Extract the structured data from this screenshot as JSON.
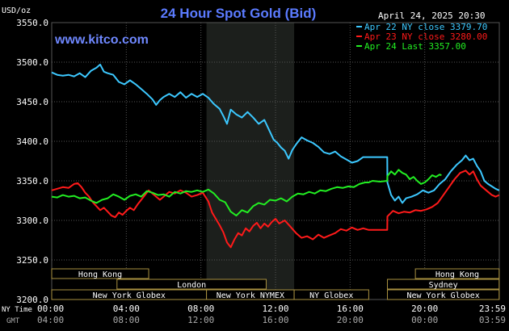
{
  "colors": {
    "background": "#000000",
    "grid": "#555555",
    "title": "#5b7bff",
    "site": "#6f88ff",
    "axis_text": "#ffffff",
    "minor_text": "#aaaaaa",
    "session_fill": "#1c1f1c",
    "market_box": "#a89040",
    "series_blue": "#3cc8ff",
    "series_red": "#ff1a1a",
    "series_green": "#22ee22"
  },
  "chart_data": {
    "type": "line",
    "title": "24 Hour Spot Gold (Bid)",
    "site": "www.kitco.com",
    "date_label": "April 24, 2025 20:30",
    "ylabel": "USD/oz",
    "ylim": [
      3200,
      3550
    ],
    "y_ticks": [
      "3550.0",
      "3500.0",
      "3450.0",
      "3400.0",
      "3350.0",
      "3300.0",
      "3250.0",
      "3200.0"
    ],
    "y_tick_values": [
      3550,
      3500,
      3450,
      3400,
      3350,
      3300,
      3250,
      3200
    ],
    "xlim": [
      0,
      24
    ],
    "x_tick_hours": [
      0,
      4,
      8,
      12,
      16,
      20,
      24
    ],
    "x_row1_label": "NY Time",
    "x_row2_label": "GMT",
    "x_ticks_ny": [
      "00:00",
      "04:00",
      "08:00",
      "12:00",
      "16:00",
      "20:00",
      "23:59"
    ],
    "x_ticks_gmt": [
      "04:00",
      "08:00",
      "12:00",
      "16:00",
      "20:00",
      "00:00",
      "03:59"
    ],
    "shaded_session": [
      8.3,
      13.0
    ],
    "markets": [
      {
        "name": "Hong Kong",
        "start": 0,
        "end": 5.2,
        "row": 0
      },
      {
        "name": "London",
        "start": 3.5,
        "end": 11.5,
        "row": 1
      },
      {
        "name": "New York Globex",
        "start": 0,
        "end": 8.3,
        "row": 2
      },
      {
        "name": "New York NYMEX",
        "start": 8.3,
        "end": 13.0,
        "row": 2
      },
      {
        "name": "NY Globex",
        "start": 13.0,
        "end": 17.0,
        "row": 2
      },
      {
        "name": "Hong Kong",
        "start": 19.5,
        "end": 23.99,
        "row": 0
      },
      {
        "name": "Sydney",
        "start": 18.0,
        "end": 23.99,
        "row": 1
      },
      {
        "name": "New York Globex",
        "start": 18.0,
        "end": 23.99,
        "row": 2
      }
    ],
    "legend_position": "top-right",
    "series": [
      {
        "name": "Apr 22 NY close 3379.70",
        "color": "#3cc8ff",
        "points": [
          [
            0.0,
            3487
          ],
          [
            0.3,
            3484
          ],
          [
            0.6,
            3483
          ],
          [
            0.9,
            3484
          ],
          [
            1.2,
            3482
          ],
          [
            1.5,
            3486
          ],
          [
            1.8,
            3481
          ],
          [
            2.1,
            3489
          ],
          [
            2.4,
            3493
          ],
          [
            2.6,
            3497
          ],
          [
            2.8,
            3488
          ],
          [
            3.0,
            3486
          ],
          [
            3.3,
            3484
          ],
          [
            3.6,
            3475
          ],
          [
            3.9,
            3472
          ],
          [
            4.2,
            3477
          ],
          [
            4.5,
            3472
          ],
          [
            4.8,
            3466
          ],
          [
            5.1,
            3460
          ],
          [
            5.4,
            3453
          ],
          [
            5.6,
            3446
          ],
          [
            5.8,
            3452
          ],
          [
            6.0,
            3456
          ],
          [
            6.3,
            3460
          ],
          [
            6.6,
            3456
          ],
          [
            6.9,
            3462
          ],
          [
            7.2,
            3455
          ],
          [
            7.5,
            3460
          ],
          [
            7.8,
            3456
          ],
          [
            8.1,
            3460
          ],
          [
            8.4,
            3455
          ],
          [
            8.7,
            3447
          ],
          [
            9.0,
            3441
          ],
          [
            9.2,
            3432
          ],
          [
            9.4,
            3422
          ],
          [
            9.6,
            3440
          ],
          [
            9.9,
            3434
          ],
          [
            10.2,
            3430
          ],
          [
            10.5,
            3437
          ],
          [
            10.8,
            3430
          ],
          [
            11.1,
            3422
          ],
          [
            11.4,
            3427
          ],
          [
            11.7,
            3412
          ],
          [
            11.9,
            3402
          ],
          [
            12.1,
            3398
          ],
          [
            12.3,
            3392
          ],
          [
            12.5,
            3388
          ],
          [
            12.7,
            3378
          ],
          [
            12.9,
            3389
          ],
          [
            13.1,
            3396
          ],
          [
            13.4,
            3405
          ],
          [
            13.7,
            3401
          ],
          [
            14.0,
            3398
          ],
          [
            14.3,
            3393
          ],
          [
            14.6,
            3386
          ],
          [
            14.9,
            3384
          ],
          [
            15.2,
            3387
          ],
          [
            15.5,
            3381
          ],
          [
            15.8,
            3377
          ],
          [
            16.1,
            3373
          ],
          [
            16.4,
            3375
          ],
          [
            16.7,
            3380
          ],
          [
            17.0,
            3380
          ],
          [
            17.5,
            3380
          ],
          [
            17.99,
            3380
          ],
          [
            18.0,
            3348
          ],
          [
            18.2,
            3332
          ],
          [
            18.4,
            3325
          ],
          [
            18.6,
            3330
          ],
          [
            18.8,
            3322
          ],
          [
            19.0,
            3328
          ],
          [
            19.3,
            3330
          ],
          [
            19.6,
            3333
          ],
          [
            19.9,
            3338
          ],
          [
            20.2,
            3335
          ],
          [
            20.5,
            3338
          ],
          [
            20.8,
            3346
          ],
          [
            21.1,
            3352
          ],
          [
            21.4,
            3362
          ],
          [
            21.7,
            3370
          ],
          [
            22.0,
            3376
          ],
          [
            22.2,
            3382
          ],
          [
            22.4,
            3376
          ],
          [
            22.6,
            3378
          ],
          [
            22.8,
            3369
          ],
          [
            23.0,
            3362
          ],
          [
            23.2,
            3350
          ],
          [
            23.4,
            3346
          ],
          [
            23.6,
            3343
          ],
          [
            23.8,
            3340
          ],
          [
            23.99,
            3338
          ]
        ]
      },
      {
        "name": "Apr 23 NY close 3280.00",
        "color": "#ff1a1a",
        "points": [
          [
            0.0,
            3338
          ],
          [
            0.3,
            3340
          ],
          [
            0.6,
            3342
          ],
          [
            0.9,
            3341
          ],
          [
            1.2,
            3346
          ],
          [
            1.4,
            3347
          ],
          [
            1.6,
            3342
          ],
          [
            1.8,
            3335
          ],
          [
            2.0,
            3330
          ],
          [
            2.2,
            3323
          ],
          [
            2.4,
            3318
          ],
          [
            2.6,
            3313
          ],
          [
            2.8,
            3316
          ],
          [
            3.0,
            3311
          ],
          [
            3.2,
            3306
          ],
          [
            3.4,
            3304
          ],
          [
            3.6,
            3310
          ],
          [
            3.8,
            3307
          ],
          [
            4.0,
            3312
          ],
          [
            4.2,
            3316
          ],
          [
            4.4,
            3313
          ],
          [
            4.6,
            3320
          ],
          [
            4.8,
            3326
          ],
          [
            5.0,
            3332
          ],
          [
            5.2,
            3338
          ],
          [
            5.4,
            3334
          ],
          [
            5.6,
            3330
          ],
          [
            5.8,
            3326
          ],
          [
            6.0,
            3330
          ],
          [
            6.3,
            3336
          ],
          [
            6.6,
            3334
          ],
          [
            6.9,
            3338
          ],
          [
            7.2,
            3335
          ],
          [
            7.5,
            3330
          ],
          [
            7.8,
            3332
          ],
          [
            8.1,
            3335
          ],
          [
            8.4,
            3324
          ],
          [
            8.6,
            3310
          ],
          [
            8.8,
            3302
          ],
          [
            9.0,
            3294
          ],
          [
            9.2,
            3285
          ],
          [
            9.4,
            3272
          ],
          [
            9.6,
            3266
          ],
          [
            9.8,
            3276
          ],
          [
            10.0,
            3284
          ],
          [
            10.2,
            3281
          ],
          [
            10.4,
            3290
          ],
          [
            10.6,
            3286
          ],
          [
            10.8,
            3293
          ],
          [
            11.0,
            3297
          ],
          [
            11.2,
            3290
          ],
          [
            11.4,
            3296
          ],
          [
            11.6,
            3292
          ],
          [
            11.8,
            3298
          ],
          [
            12.0,
            3302
          ],
          [
            12.2,
            3296
          ],
          [
            12.5,
            3300
          ],
          [
            12.8,
            3292
          ],
          [
            13.1,
            3284
          ],
          [
            13.4,
            3278
          ],
          [
            13.7,
            3280
          ],
          [
            14.0,
            3276
          ],
          [
            14.3,
            3282
          ],
          [
            14.6,
            3278
          ],
          [
            14.9,
            3281
          ],
          [
            15.2,
            3284
          ],
          [
            15.5,
            3289
          ],
          [
            15.8,
            3287
          ],
          [
            16.1,
            3291
          ],
          [
            16.4,
            3288
          ],
          [
            16.7,
            3290
          ],
          [
            17.0,
            3288
          ],
          [
            17.5,
            3288
          ],
          [
            17.99,
            3288
          ],
          [
            18.0,
            3305
          ],
          [
            18.3,
            3312
          ],
          [
            18.6,
            3309
          ],
          [
            18.9,
            3311
          ],
          [
            19.2,
            3310
          ],
          [
            19.5,
            3313
          ],
          [
            19.8,
            3312
          ],
          [
            20.1,
            3314
          ],
          [
            20.4,
            3317
          ],
          [
            20.7,
            3322
          ],
          [
            21.0,
            3332
          ],
          [
            21.3,
            3342
          ],
          [
            21.6,
            3352
          ],
          [
            21.9,
            3360
          ],
          [
            22.2,
            3363
          ],
          [
            22.4,
            3358
          ],
          [
            22.6,
            3362
          ],
          [
            22.8,
            3352
          ],
          [
            23.0,
            3344
          ],
          [
            23.2,
            3340
          ],
          [
            23.4,
            3336
          ],
          [
            23.6,
            3332
          ],
          [
            23.8,
            3330
          ],
          [
            23.99,
            3332
          ]
        ]
      },
      {
        "name": "Apr 24 Last 3357.00",
        "color": "#22ee22",
        "points": [
          [
            0.0,
            3330
          ],
          [
            0.3,
            3329
          ],
          [
            0.6,
            3332
          ],
          [
            0.9,
            3330
          ],
          [
            1.2,
            3331
          ],
          [
            1.5,
            3328
          ],
          [
            1.8,
            3329
          ],
          [
            2.1,
            3325
          ],
          [
            2.4,
            3322
          ],
          [
            2.7,
            3326
          ],
          [
            3.0,
            3328
          ],
          [
            3.3,
            3333
          ],
          [
            3.6,
            3330
          ],
          [
            3.9,
            3326
          ],
          [
            4.2,
            3331
          ],
          [
            4.5,
            3333
          ],
          [
            4.8,
            3330
          ],
          [
            5.1,
            3337
          ],
          [
            5.4,
            3335
          ],
          [
            5.7,
            3332
          ],
          [
            6.0,
            3333
          ],
          [
            6.3,
            3330
          ],
          [
            6.6,
            3336
          ],
          [
            6.9,
            3334
          ],
          [
            7.2,
            3337
          ],
          [
            7.5,
            3336
          ],
          [
            7.8,
            3338
          ],
          [
            8.1,
            3336
          ],
          [
            8.4,
            3339
          ],
          [
            8.7,
            3334
          ],
          [
            9.0,
            3326
          ],
          [
            9.3,
            3323
          ],
          [
            9.6,
            3311
          ],
          [
            9.9,
            3306
          ],
          [
            10.2,
            3313
          ],
          [
            10.5,
            3310
          ],
          [
            10.8,
            3318
          ],
          [
            11.1,
            3322
          ],
          [
            11.4,
            3320
          ],
          [
            11.7,
            3326
          ],
          [
            12.0,
            3325
          ],
          [
            12.3,
            3328
          ],
          [
            12.6,
            3324
          ],
          [
            12.9,
            3330
          ],
          [
            13.2,
            3334
          ],
          [
            13.5,
            3333
          ],
          [
            13.8,
            3336
          ],
          [
            14.1,
            3334
          ],
          [
            14.4,
            3338
          ],
          [
            14.7,
            3337
          ],
          [
            15.0,
            3340
          ],
          [
            15.3,
            3342
          ],
          [
            15.6,
            3341
          ],
          [
            15.9,
            3343
          ],
          [
            16.2,
            3342
          ],
          [
            16.5,
            3346
          ],
          [
            16.8,
            3348
          ],
          [
            17.0,
            3348
          ],
          [
            17.2,
            3350
          ],
          [
            17.6,
            3349
          ],
          [
            17.99,
            3350
          ],
          [
            18.0,
            3356
          ],
          [
            18.2,
            3362
          ],
          [
            18.4,
            3358
          ],
          [
            18.6,
            3364
          ],
          [
            18.8,
            3360
          ],
          [
            19.0,
            3358
          ],
          [
            19.2,
            3352
          ],
          [
            19.4,
            3355
          ],
          [
            19.6,
            3350
          ],
          [
            19.8,
            3346
          ],
          [
            20.0,
            3348
          ],
          [
            20.2,
            3352
          ],
          [
            20.4,
            3357
          ],
          [
            20.6,
            3355
          ],
          [
            20.8,
            3358
          ],
          [
            20.9,
            3357
          ]
        ]
      }
    ]
  }
}
